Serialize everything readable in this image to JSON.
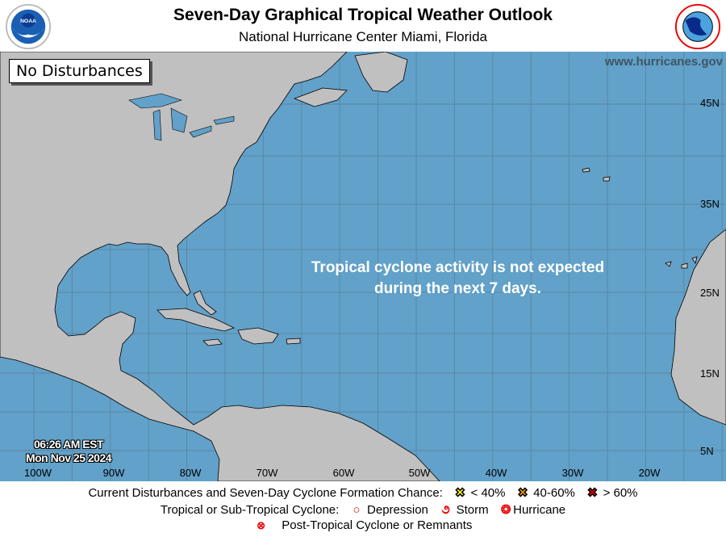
{
  "header": {
    "title": "Seven-Day Graphical Tropical Weather Outlook",
    "subtitle": "National Hurricane Center  Miami, Florida",
    "left_logo": "NOAA",
    "right_logo": "NATIONAL WEATHER SERVICE"
  },
  "map": {
    "status_box": "No Disturbances",
    "website": "www.hurricanes.gov",
    "message_line1": "Tropical cyclone activity is not expected",
    "message_line2": "during the next 7 days.",
    "time": "06:26 AM EST",
    "date": "Mon Nov 25 2024",
    "lon_labels": [
      "100W",
      "90W",
      "80W",
      "70W",
      "60W",
      "50W",
      "40W",
      "30W",
      "20W"
    ],
    "lat_labels": [
      "45N",
      "35N",
      "25N",
      "15N",
      "5N"
    ],
    "colors": {
      "ocean": "#62a1c9",
      "land": "#c0c0c0",
      "grid": "#5a88a6"
    }
  },
  "legend": {
    "row1_label": "Current Disturbances and Seven-Day Cyclone Formation Chance:",
    "low": "< 40%",
    "medium": "40-60%",
    "high": "> 60%",
    "row2_label": "Tropical or Sub-Tropical Cyclone:",
    "depression": "Depression",
    "storm": "Storm",
    "hurricane": "Hurricane",
    "post_tropical": "Post-Tropical Cyclone or Remnants",
    "colors": {
      "low": "#ffff00",
      "medium": "#ff9900",
      "high": "#ee0000",
      "cyclone": "#ee0000"
    }
  }
}
